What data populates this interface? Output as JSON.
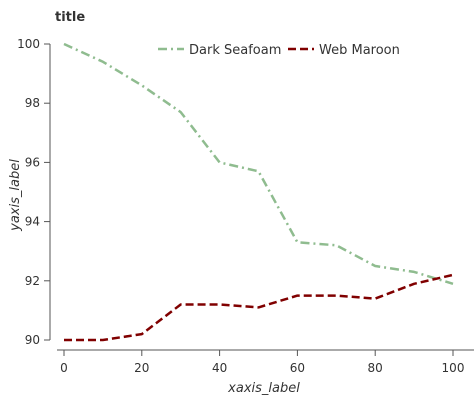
{
  "chart_data": {
    "type": "line",
    "title": "title",
    "xlabel": "xaxis_label",
    "ylabel": "yaxis_label",
    "xlim": [
      0,
      100
    ],
    "ylim": [
      90,
      100
    ],
    "xticks": [
      0,
      20,
      40,
      60,
      80,
      100
    ],
    "yticks": [
      90,
      92,
      94,
      96,
      98,
      100
    ],
    "grid": false,
    "legend_position": "top",
    "series": [
      {
        "name": "Dark Seafoam",
        "color": "#8fbc8f",
        "dash": "dash-dot",
        "x": [
          0,
          10,
          20,
          30,
          40,
          50,
          60,
          70,
          80,
          90,
          100
        ],
        "y": [
          100,
          99.4,
          98.6,
          97.7,
          96.0,
          95.7,
          93.3,
          93.2,
          92.5,
          92.3,
          91.9
        ]
      },
      {
        "name": "Web Maroon",
        "color": "#800000",
        "dash": "dash",
        "x": [
          0,
          10,
          20,
          30,
          40,
          50,
          60,
          70,
          80,
          90,
          100
        ],
        "y": [
          90.0,
          90.0,
          90.2,
          91.2,
          91.2,
          91.1,
          91.5,
          91.5,
          91.4,
          91.9,
          92.2
        ]
      }
    ]
  }
}
